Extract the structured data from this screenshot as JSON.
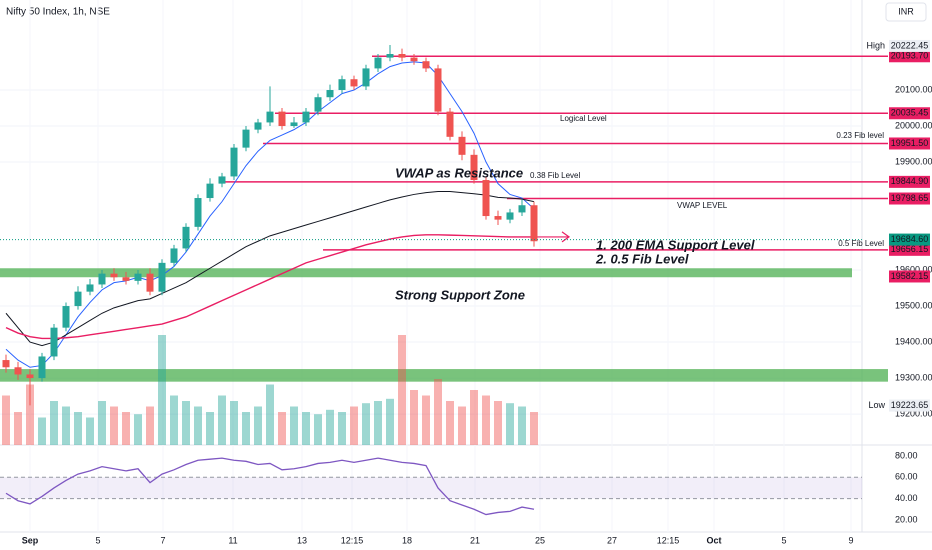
{
  "chart_data": {
    "type": "candlestick",
    "title": "Nifty 50 Index, 1h, NSE",
    "currency": "INR",
    "ylim": [
      19128,
      20350
    ],
    "yticks": [
      {
        "value": 20100,
        "label": "20100.00"
      },
      {
        "value": 20000,
        "label": "20000.00"
      },
      {
        "value": 19900,
        "label": "19900.00"
      },
      {
        "value": 19600,
        "label": "19600.00"
      },
      {
        "value": 19500,
        "label": "19500.00"
      },
      {
        "value": 19400,
        "label": "19400.00"
      },
      {
        "value": 19300,
        "label": "19300.00"
      },
      {
        "value": 19200,
        "label": "19200.00"
      }
    ],
    "xtick_labels": [
      "Sep",
      "5",
      "7",
      "11",
      "13",
      "12:15",
      "18",
      "21",
      "25",
      "27",
      "12:15",
      "Oct",
      "5",
      "9"
    ],
    "up_color": "#26a69a",
    "down_color": "#ef5350",
    "open": [
      19350,
      19330,
      19310,
      19300,
      19360,
      19440,
      19500,
      19540,
      19560,
      19590,
      19580,
      19570,
      19590,
      19540,
      19620,
      19660,
      19720,
      19800,
      19840,
      19860,
      19940,
      19990,
      20010,
      20040,
      20000,
      20010,
      20040,
      20080,
      20100,
      20130,
      20110,
      20160,
      20190,
      20200,
      20190,
      20180,
      20160,
      20040,
      19970,
      19920,
      19850,
      19750,
      19740,
      19760,
      19780
    ],
    "high": [
      19365,
      19345,
      19325,
      19370,
      19450,
      19510,
      19555,
      19575,
      19600,
      19605,
      19595,
      19600,
      19605,
      19630,
      19670,
      19730,
      19810,
      19855,
      19870,
      19950,
      20000,
      20020,
      20110,
      20050,
      20025,
      20050,
      20090,
      20115,
      20140,
      20140,
      20170,
      20200,
      20225,
      20215,
      20200,
      20190,
      20170,
      20050,
      19985,
      19935,
      19860,
      19765,
      19770,
      19795,
      19790
    ],
    "low": [
      19315,
      19295,
      19224,
      19290,
      19350,
      19430,
      19490,
      19530,
      19550,
      19570,
      19560,
      19560,
      19530,
      19530,
      19610,
      19650,
      19710,
      19790,
      19830,
      19850,
      19930,
      19980,
      20000,
      19990,
      19995,
      20000,
      20030,
      20070,
      20090,
      20100,
      20100,
      20150,
      20180,
      20180,
      20170,
      20150,
      20030,
      19960,
      19905,
      19840,
      19740,
      19725,
      19730,
      19750,
      19665
    ],
    "close": [
      19330,
      19310,
      19300,
      19360,
      19440,
      19500,
      19540,
      19560,
      19590,
      19580,
      19570,
      19590,
      19540,
      19620,
      19660,
      19720,
      19800,
      19840,
      19860,
      19940,
      19990,
      20010,
      20040,
      20000,
      20010,
      20040,
      20080,
      20100,
      20130,
      20110,
      20160,
      20190,
      20200,
      20190,
      20180,
      20160,
      20040,
      19970,
      19920,
      19850,
      19750,
      19740,
      19760,
      19780,
      19680
    ],
    "volume": [
      45,
      30,
      55,
      25,
      40,
      35,
      30,
      25,
      40,
      35,
      30,
      28,
      35,
      100,
      45,
      40,
      35,
      30,
      45,
      40,
      30,
      35,
      55,
      30,
      35,
      30,
      28,
      32,
      30,
      35,
      38,
      40,
      42,
      100,
      50,
      45,
      60,
      40,
      35,
      50,
      45,
      40,
      38,
      35,
      30
    ],
    "volume_ylim": [
      0,
      100
    ],
    "lines": [
      {
        "color": "#2962ff",
        "values": [
          19380,
          19350,
          19330,
          19335,
          19370,
          19420,
          19470,
          19510,
          19545,
          19565,
          19570,
          19580,
          19570,
          19585,
          19610,
          19650,
          19700,
          19750,
          19790,
          19840,
          19890,
          19930,
          19960,
          19975,
          19990,
          20010,
          20040,
          20065,
          20090,
          20100,
          20120,
          20145,
          20165,
          20175,
          20178,
          20175,
          20140,
          20090,
          20040,
          19980,
          19900,
          19840,
          19810,
          19800,
          19770
        ]
      },
      {
        "color": "#131722",
        "values": [
          19480,
          19440,
          19400,
          19390,
          19400,
          19420,
          19440,
          19460,
          19480,
          19495,
          19505,
          19515,
          19520,
          19535,
          19550,
          19565,
          19585,
          19605,
          19625,
          19645,
          19665,
          19680,
          19695,
          19705,
          19715,
          19725,
          19735,
          19745,
          19755,
          19765,
          19775,
          19785,
          19795,
          19803,
          19810,
          19815,
          19818,
          19818,
          19815,
          19812,
          19808,
          19802,
          19800,
          19797,
          19790
        ]
      },
      {
        "color": "#e91e63",
        "values": [
          19440,
          19425,
          19415,
          19410,
          19410,
          19412,
          19415,
          19420,
          19425,
          19430,
          19435,
          19440,
          19445,
          19450,
          19460,
          19470,
          19485,
          19500,
          19515,
          19530,
          19545,
          19560,
          19575,
          19590,
          19605,
          19620,
          19630,
          19640,
          19650,
          19660,
          19670,
          19678,
          19686,
          19692,
          19696,
          19698,
          19698,
          19697,
          19696,
          19695,
          19694,
          19693,
          19692,
          19692,
          19692
        ]
      }
    ],
    "levels_color": "#e91e63",
    "levels": [
      {
        "value": 20193.7,
        "label": "20193.70"
      },
      {
        "value": 20035.45,
        "label": "20035.45"
      },
      {
        "value": 19951.5,
        "label": "19951.50"
      },
      {
        "value": 19844.9,
        "label": "19844.90"
      },
      {
        "value": 19798.65,
        "label": "19798.65"
      },
      {
        "value": 19656.15,
        "label": "19656.15"
      }
    ],
    "zone_label": {
      "value": 19582.15,
      "label": "19582.15"
    },
    "zones_color": "#4caf50",
    "zones": [
      [
        19580,
        19605
      ],
      [
        19290,
        19325
      ]
    ],
    "high_mark": {
      "name": "High",
      "value": 20222.45,
      "label": "20222.45"
    },
    "low_mark": {
      "name": "Low",
      "value": 19223.65,
      "label": "19223.65"
    },
    "last_price": {
      "value": 19684.6,
      "label": "19684.60",
      "color": "#089981"
    },
    "level_notes": [
      "Logical Level",
      "0.23 Fib level",
      "0.38 Fib Level",
      "VWAP LEVEL",
      "0.5 Fib Level"
    ],
    "annotations": [
      "VWAP as Resistance",
      "1. 200 EMA Support Level",
      "2. 0.5 Fib Level",
      "Strong Support Zone"
    ],
    "rsi": {
      "color": "#7e57c2",
      "values": [
        45,
        38,
        35,
        42,
        50,
        57,
        63,
        66,
        70,
        68,
        66,
        68,
        55,
        63,
        67,
        72,
        76,
        77,
        78,
        76,
        75,
        72,
        73,
        67,
        68,
        70,
        73,
        74,
        76,
        74,
        76,
        78,
        76,
        74,
        73,
        71,
        50,
        38,
        34,
        30,
        25,
        27,
        28,
        32,
        30
      ],
      "ylim": [
        10.5,
        87.5
      ],
      "yticks": [
        {
          "value": 80,
          "label": "80.00"
        },
        {
          "value": 60,
          "label": "60.00"
        },
        {
          "value": 40,
          "label": "40.00"
        },
        {
          "value": 20,
          "label": "20.00"
        }
      ],
      "band": [
        40,
        60
      ]
    }
  }
}
